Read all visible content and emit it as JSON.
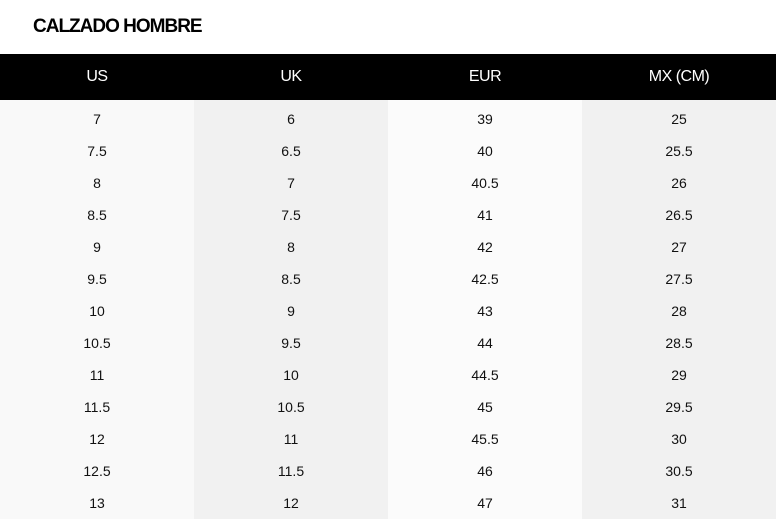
{
  "title": "CALZADO HOMBRE",
  "headers": [
    "US",
    "UK",
    "EUR",
    "MX (CM)"
  ],
  "rows": [
    [
      "7",
      "6",
      "39",
      "25"
    ],
    [
      "7.5",
      "6.5",
      "40",
      "25.5"
    ],
    [
      "8",
      "7",
      "40.5",
      "26"
    ],
    [
      "8.5",
      "7.5",
      "41",
      "26.5"
    ],
    [
      "9",
      "8",
      "42",
      "27"
    ],
    [
      "9.5",
      "8.5",
      "42.5",
      "27.5"
    ],
    [
      "10",
      "9",
      "43",
      "28"
    ],
    [
      "10.5",
      "9.5",
      "44",
      "28.5"
    ],
    [
      "11",
      "10",
      "44.5",
      "29"
    ],
    [
      "11.5",
      "10.5",
      "45",
      "29.5"
    ],
    [
      "12",
      "11",
      "45.5",
      "30"
    ],
    [
      "12.5",
      "11.5",
      "46",
      "30.5"
    ],
    [
      "13",
      "12",
      "47",
      "31"
    ]
  ]
}
